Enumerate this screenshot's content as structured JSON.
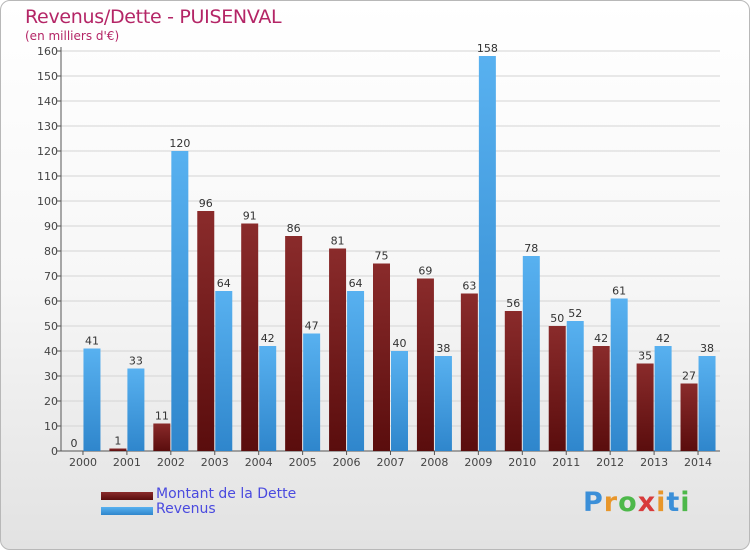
{
  "chart_data": {
    "type": "bar",
    "title": "Revenus/Dette - PUISENVAL",
    "subtitle": "(en milliers d'€)",
    "xlabel": "",
    "ylabel": "",
    "ylim": [
      0,
      160
    ],
    "yticks": [
      0,
      10,
      20,
      30,
      40,
      50,
      60,
      70,
      80,
      90,
      100,
      110,
      120,
      130,
      140,
      150,
      160
    ],
    "grid": true,
    "legend_position": "bottom-left",
    "categories": [
      "2000",
      "2001",
      "2002",
      "2003",
      "2004",
      "2005",
      "2006",
      "2007",
      "2008",
      "2009",
      "2010",
      "2011",
      "2012",
      "2013",
      "2014"
    ],
    "series": [
      {
        "name": "Montant de la Dette",
        "color": "#7a1a1a",
        "values": [
          0,
          1,
          11,
          96,
          91,
          86,
          81,
          75,
          69,
          63,
          56,
          50,
          42,
          35,
          27
        ]
      },
      {
        "name": "Revenus",
        "color": "#3d9be0",
        "values": [
          41,
          33,
          120,
          64,
          42,
          47,
          64,
          40,
          38,
          158,
          78,
          52,
          61,
          42,
          38
        ]
      }
    ]
  },
  "logo": {
    "letters": [
      "P",
      "r",
      "o",
      "x",
      "i",
      "t",
      "i"
    ]
  }
}
